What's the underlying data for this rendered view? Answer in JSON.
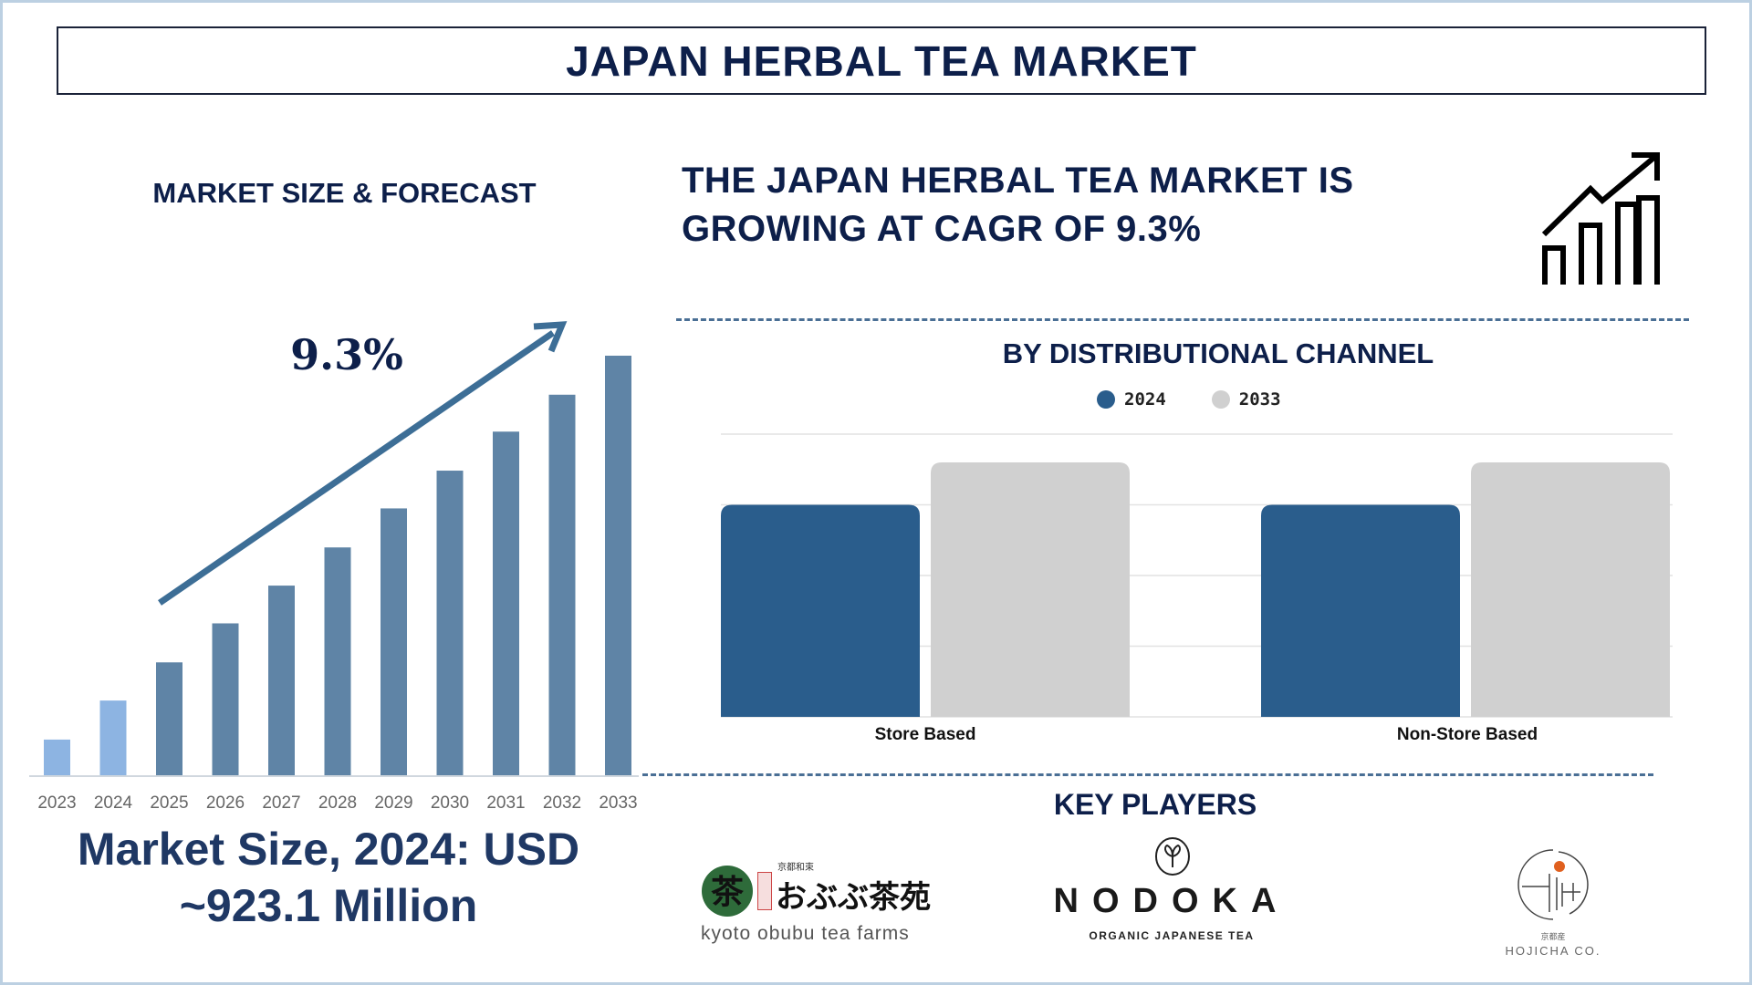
{
  "header": {
    "title": "JAPAN HERBAL TEA MARKET"
  },
  "left": {
    "section_title": "MARKET SIZE & FORECAST",
    "cagr_label": "9.3%",
    "market_size_line1": "Market Size, 2024: USD",
    "market_size_line2": "~923.1 Million"
  },
  "right": {
    "headline_line1": "THE JAPAN HERBAL TEA MARKET IS",
    "headline_line2": "GROWING AT CAGR OF 9.3%",
    "icon": "growth-chart-icon",
    "channel_title": "BY DISTRIBUTIONAL CHANNEL",
    "key_players_title": "KEY PLAYERS",
    "players": [
      {
        "name": "kyoto obubu tea farms",
        "logo_text": "おぶぶ茶苑",
        "logo_small": "京都和束"
      },
      {
        "name": "NODOKA",
        "tagline": "ORGANIC JAPANESE TEA"
      },
      {
        "name": "HOJICHA CO.",
        "logo_small": "京都産"
      }
    ]
  },
  "chart_data": [
    {
      "type": "bar",
      "title": "",
      "categories": [
        "2023",
        "2024",
        "2025",
        "2026",
        "2027",
        "2028",
        "2029",
        "2030",
        "2031",
        "2032",
        "2033"
      ],
      "values": [
        8.5,
        17.8,
        26.9,
        36.2,
        45.2,
        54.3,
        63.6,
        72.6,
        81.9,
        90.7,
        100
      ],
      "ylim": [
        0,
        100
      ],
      "grid": false,
      "colors": {
        "historical": "#8db4e2",
        "forecast": "#5f84a6",
        "arrow": "#3d6e96"
      },
      "annotation": "9.3%"
    },
    {
      "type": "bar",
      "title": "BY DISTRIBUTIONAL CHANNEL",
      "categories": [
        "Store Based",
        "Non-Store Based"
      ],
      "series": [
        {
          "name": "2024",
          "values": [
            3.0,
            3.0
          ],
          "color": "#2a5d8c"
        },
        {
          "name": "2033",
          "values": [
            3.6,
            3.6
          ],
          "color": "#d0d0d0"
        }
      ],
      "ylim": [
        0,
        4
      ],
      "grid": true,
      "legend": "top"
    }
  ]
}
